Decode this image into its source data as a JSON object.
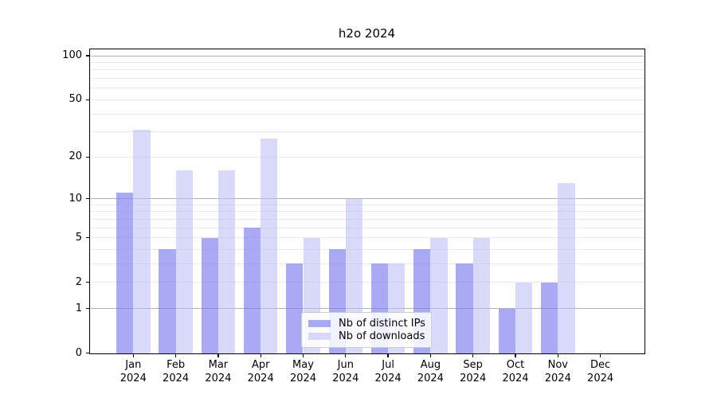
{
  "title": "h2o 2024",
  "colors": {
    "bar_distinct_ips": "rgba(133,133,240,0.70)",
    "bar_downloads": "rgba(185,185,245,0.55)",
    "grid_major": "#b2b2b2",
    "grid_minor": "#e9e9e9",
    "axis": "#000000",
    "legend_border": "#cccccc"
  },
  "chart_data": {
    "type": "bar",
    "title": "h2o 2024",
    "xlabel": "",
    "ylabel": "",
    "categories": [
      "Jan",
      "Feb",
      "Mar",
      "Apr",
      "May",
      "Jun",
      "Jul",
      "Aug",
      "Sep",
      "Oct",
      "Nov",
      "Dec"
    ],
    "year_label": "2024",
    "series": [
      {
        "name": "Nb of distinct IPs",
        "values": [
          11,
          4,
          5,
          6,
          3,
          4,
          3,
          4,
          3,
          1,
          2,
          0
        ]
      },
      {
        "name": "Nb of downloads",
        "values": [
          31,
          16,
          16,
          27,
          5,
          10,
          3,
          5,
          5,
          2,
          13,
          0
        ]
      }
    ],
    "yscale": "log1p",
    "ylim": [
      0,
      100
    ],
    "ytick_values": [
      0,
      1,
      2,
      5,
      10,
      20,
      50,
      100
    ],
    "ytick_labels": [
      "0",
      "1",
      "2",
      "5",
      "10",
      "20",
      "50",
      "100"
    ],
    "grid_values": [
      1,
      2,
      3,
      4,
      5,
      6,
      7,
      8,
      9,
      10,
      20,
      30,
      40,
      50,
      60,
      70,
      80,
      90,
      100
    ],
    "major_grid_values": [
      1,
      10,
      100
    ],
    "grid": "on",
    "legend_position": "lower center"
  }
}
